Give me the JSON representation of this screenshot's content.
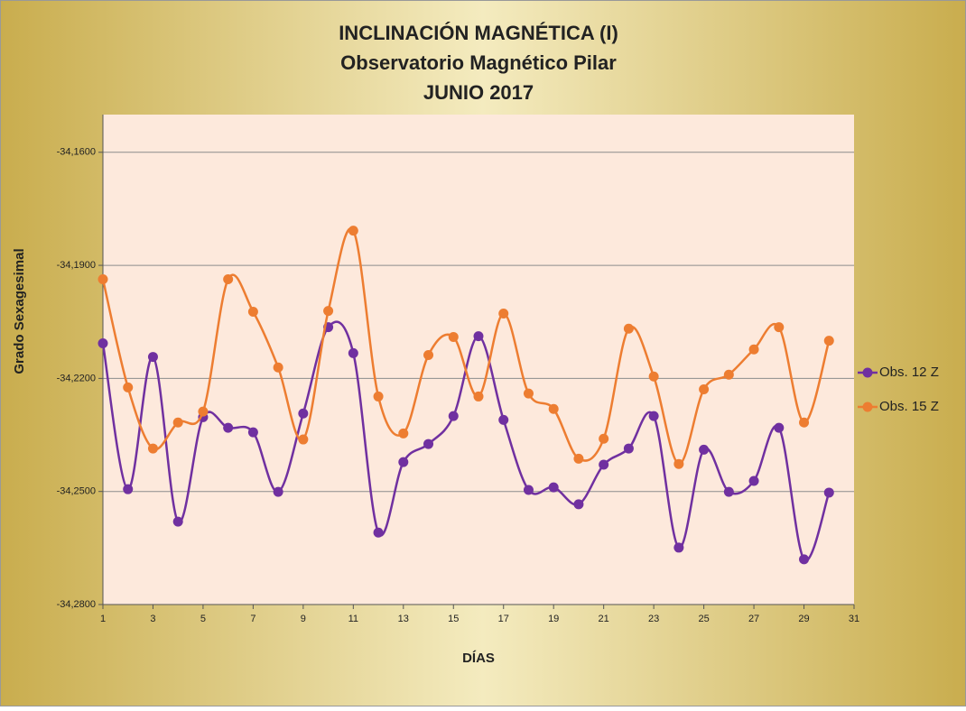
{
  "chart_data": {
    "type": "line",
    "smooth": true,
    "markers": true,
    "grid": true,
    "legend": "right",
    "title": "INCLINACIÓN MAGNÉTICA (I)",
    "subtitle": "Observatorio Magnético Pilar",
    "period": "JUNIO 2017",
    "x_label": "DÍAS",
    "y_label": "Grado Sexagesimal",
    "x": [
      1,
      2,
      3,
      4,
      5,
      6,
      7,
      8,
      9,
      10,
      11,
      12,
      13,
      14,
      15,
      16,
      17,
      18,
      19,
      20,
      21,
      22,
      23,
      24,
      25,
      26,
      27,
      28,
      29,
      30
    ],
    "xlim": [
      1,
      31
    ],
    "xticks": [
      1,
      3,
      5,
      7,
      9,
      11,
      13,
      15,
      17,
      19,
      21,
      23,
      25,
      27,
      29,
      31
    ],
    "ylim": [
      -34.28,
      -34.15
    ],
    "yticks": [
      {
        "value": -34.28,
        "label": "-34,2800"
      },
      {
        "value": -34.25,
        "label": "-34,2500"
      },
      {
        "value": -34.22,
        "label": "-34,2200"
      },
      {
        "value": -34.19,
        "label": "-34,1900"
      },
      {
        "value": -34.16,
        "label": "-34,1600"
      }
    ],
    "series": [
      {
        "name": "Obs. 12 Z",
        "color": "#7030a0",
        "values": [
          -34.2107,
          -34.2494,
          -34.2143,
          -34.258,
          -34.2303,
          -34.2331,
          -34.2343,
          -34.2501,
          -34.2293,
          -34.2064,
          -34.2133,
          -34.2609,
          -34.2422,
          -34.2374,
          -34.23,
          -34.2088,
          -34.231,
          -34.2496,
          -34.2489,
          -34.2534,
          -34.2429,
          -34.2386,
          -34.23,
          -34.2649,
          -34.2389,
          -34.2501,
          -34.2472,
          -34.2331,
          -34.268,
          -34.2503
        ]
      },
      {
        "name": "Obs. 15 Z",
        "color": "#ed7d31",
        "values": [
          -34.1937,
          -34.2224,
          -34.2386,
          -34.2317,
          -34.2288,
          -34.1937,
          -34.2023,
          -34.2171,
          -34.2362,
          -34.2021,
          -34.1808,
          -34.2248,
          -34.2346,
          -34.2138,
          -34.209,
          -34.2248,
          -34.2028,
          -34.224,
          -34.2281,
          -34.2413,
          -34.236,
          -34.2068,
          -34.2195,
          -34.2427,
          -34.2229,
          -34.219,
          -34.2123,
          -34.2064,
          -34.2317,
          -34.21
        ]
      }
    ]
  }
}
